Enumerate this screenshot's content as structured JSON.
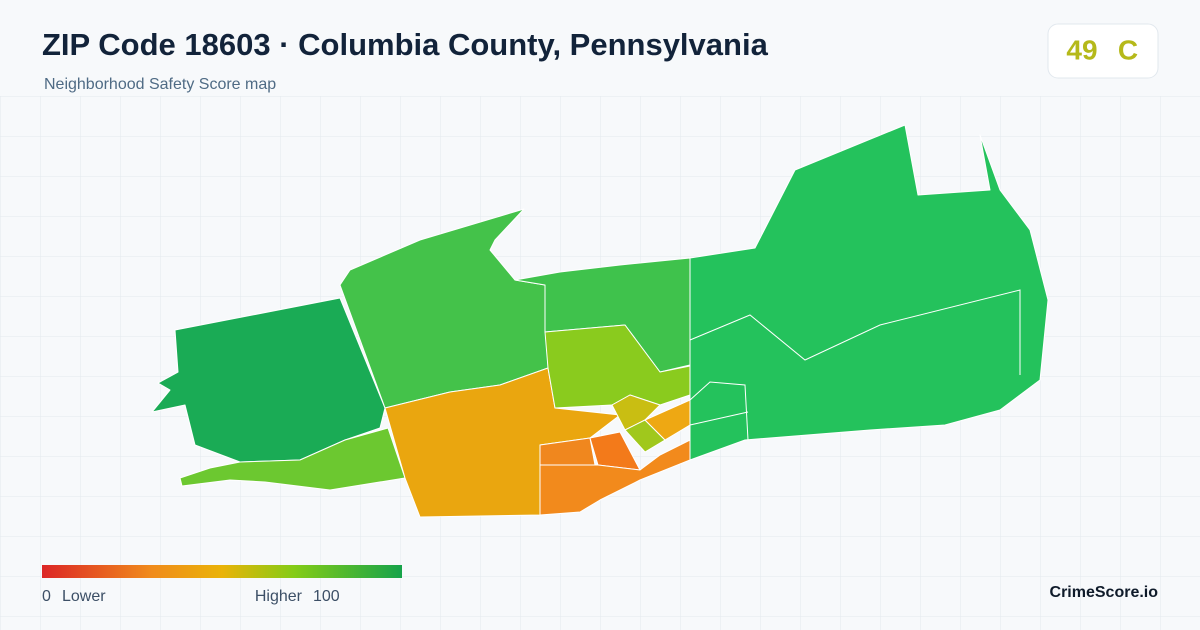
{
  "header": {
    "title": "ZIP Code 18603 · Columbia County, Pennsylvania",
    "subtitle": "Neighborhood Safety Score map"
  },
  "score": {
    "value": 49,
    "grade": "C"
  },
  "legend": {
    "min": 0,
    "min_label": "Lower",
    "max_label": "Higher",
    "max": 100
  },
  "brand": "CrimeScore.io"
}
